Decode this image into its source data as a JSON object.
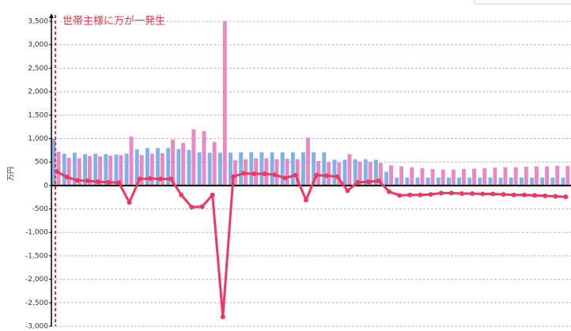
{
  "chart_data": {
    "type": "bar",
    "annotation": "世帯主様に万が一発生",
    "y_label": "万円",
    "ylim": [
      -3000,
      3500
    ],
    "yticks": [
      {
        "value": -3000,
        "label": "-3,000"
      },
      {
        "value": -2500,
        "label": "-2,500"
      },
      {
        "value": -2000,
        "label": "-2,000"
      },
      {
        "value": -1500,
        "label": "-1,500"
      },
      {
        "value": -1000,
        "label": "-1,000"
      },
      -500,
      0,
      500,
      {
        "value": 1000,
        "label": "1,000"
      },
      {
        "value": 1500,
        "label": "1,500"
      },
      {
        "value": 2000,
        "label": "2,000"
      },
      {
        "value": 2500,
        "label": "2,500"
      },
      {
        "value": 3000,
        "label": "3,000"
      },
      {
        "value": 3500,
        "label": "3,500"
      }
    ],
    "grid": true,
    "series": [
      {
        "type": "bar",
        "color": "#7fb2e8",
        "values": [
          1000,
          680,
          700,
          670,
          680,
          670,
          660,
          680,
          770,
          800,
          800,
          800,
          780,
          760,
          710,
          700,
          700,
          700,
          710,
          710,
          710,
          710,
          710,
          710,
          710,
          710,
          710,
          550,
          550,
          560,
          560,
          550,
          290,
          170,
          170,
          170,
          170,
          170,
          170,
          170,
          170,
          170,
          170,
          170,
          170,
          170,
          170,
          170,
          170,
          170
        ]
      },
      {
        "type": "bar",
        "color": "#e888c4",
        "values": [
          720,
          590,
          580,
          630,
          620,
          640,
          650,
          1040,
          650,
          680,
          690,
          980,
          910,
          1200,
          1160,
          930,
          3500,
          540,
          560,
          580,
          580,
          560,
          570,
          560,
          1020,
          520,
          500,
          490,
          670,
          510,
          500,
          480,
          430,
          410,
          390,
          370,
          350,
          340,
          340,
          350,
          360,
          370,
          380,
          390,
          390,
          400,
          410,
          410,
          420,
          420
        ]
      },
      {
        "type": "line",
        "color": "#f0375f",
        "values": [
          300,
          180,
          110,
          100,
          80,
          70,
          60,
          -360,
          140,
          150,
          140,
          140,
          -200,
          -460,
          -450,
          -200,
          -2800,
          190,
          260,
          250,
          250,
          230,
          160,
          220,
          -310,
          220,
          210,
          190,
          -110,
          70,
          80,
          100,
          -130,
          -210,
          -200,
          -200,
          -190,
          -160,
          -160,
          -170,
          -170,
          -180,
          -180,
          -190,
          -200,
          -200,
          -210,
          -220,
          -230,
          -240
        ]
      }
    ]
  }
}
